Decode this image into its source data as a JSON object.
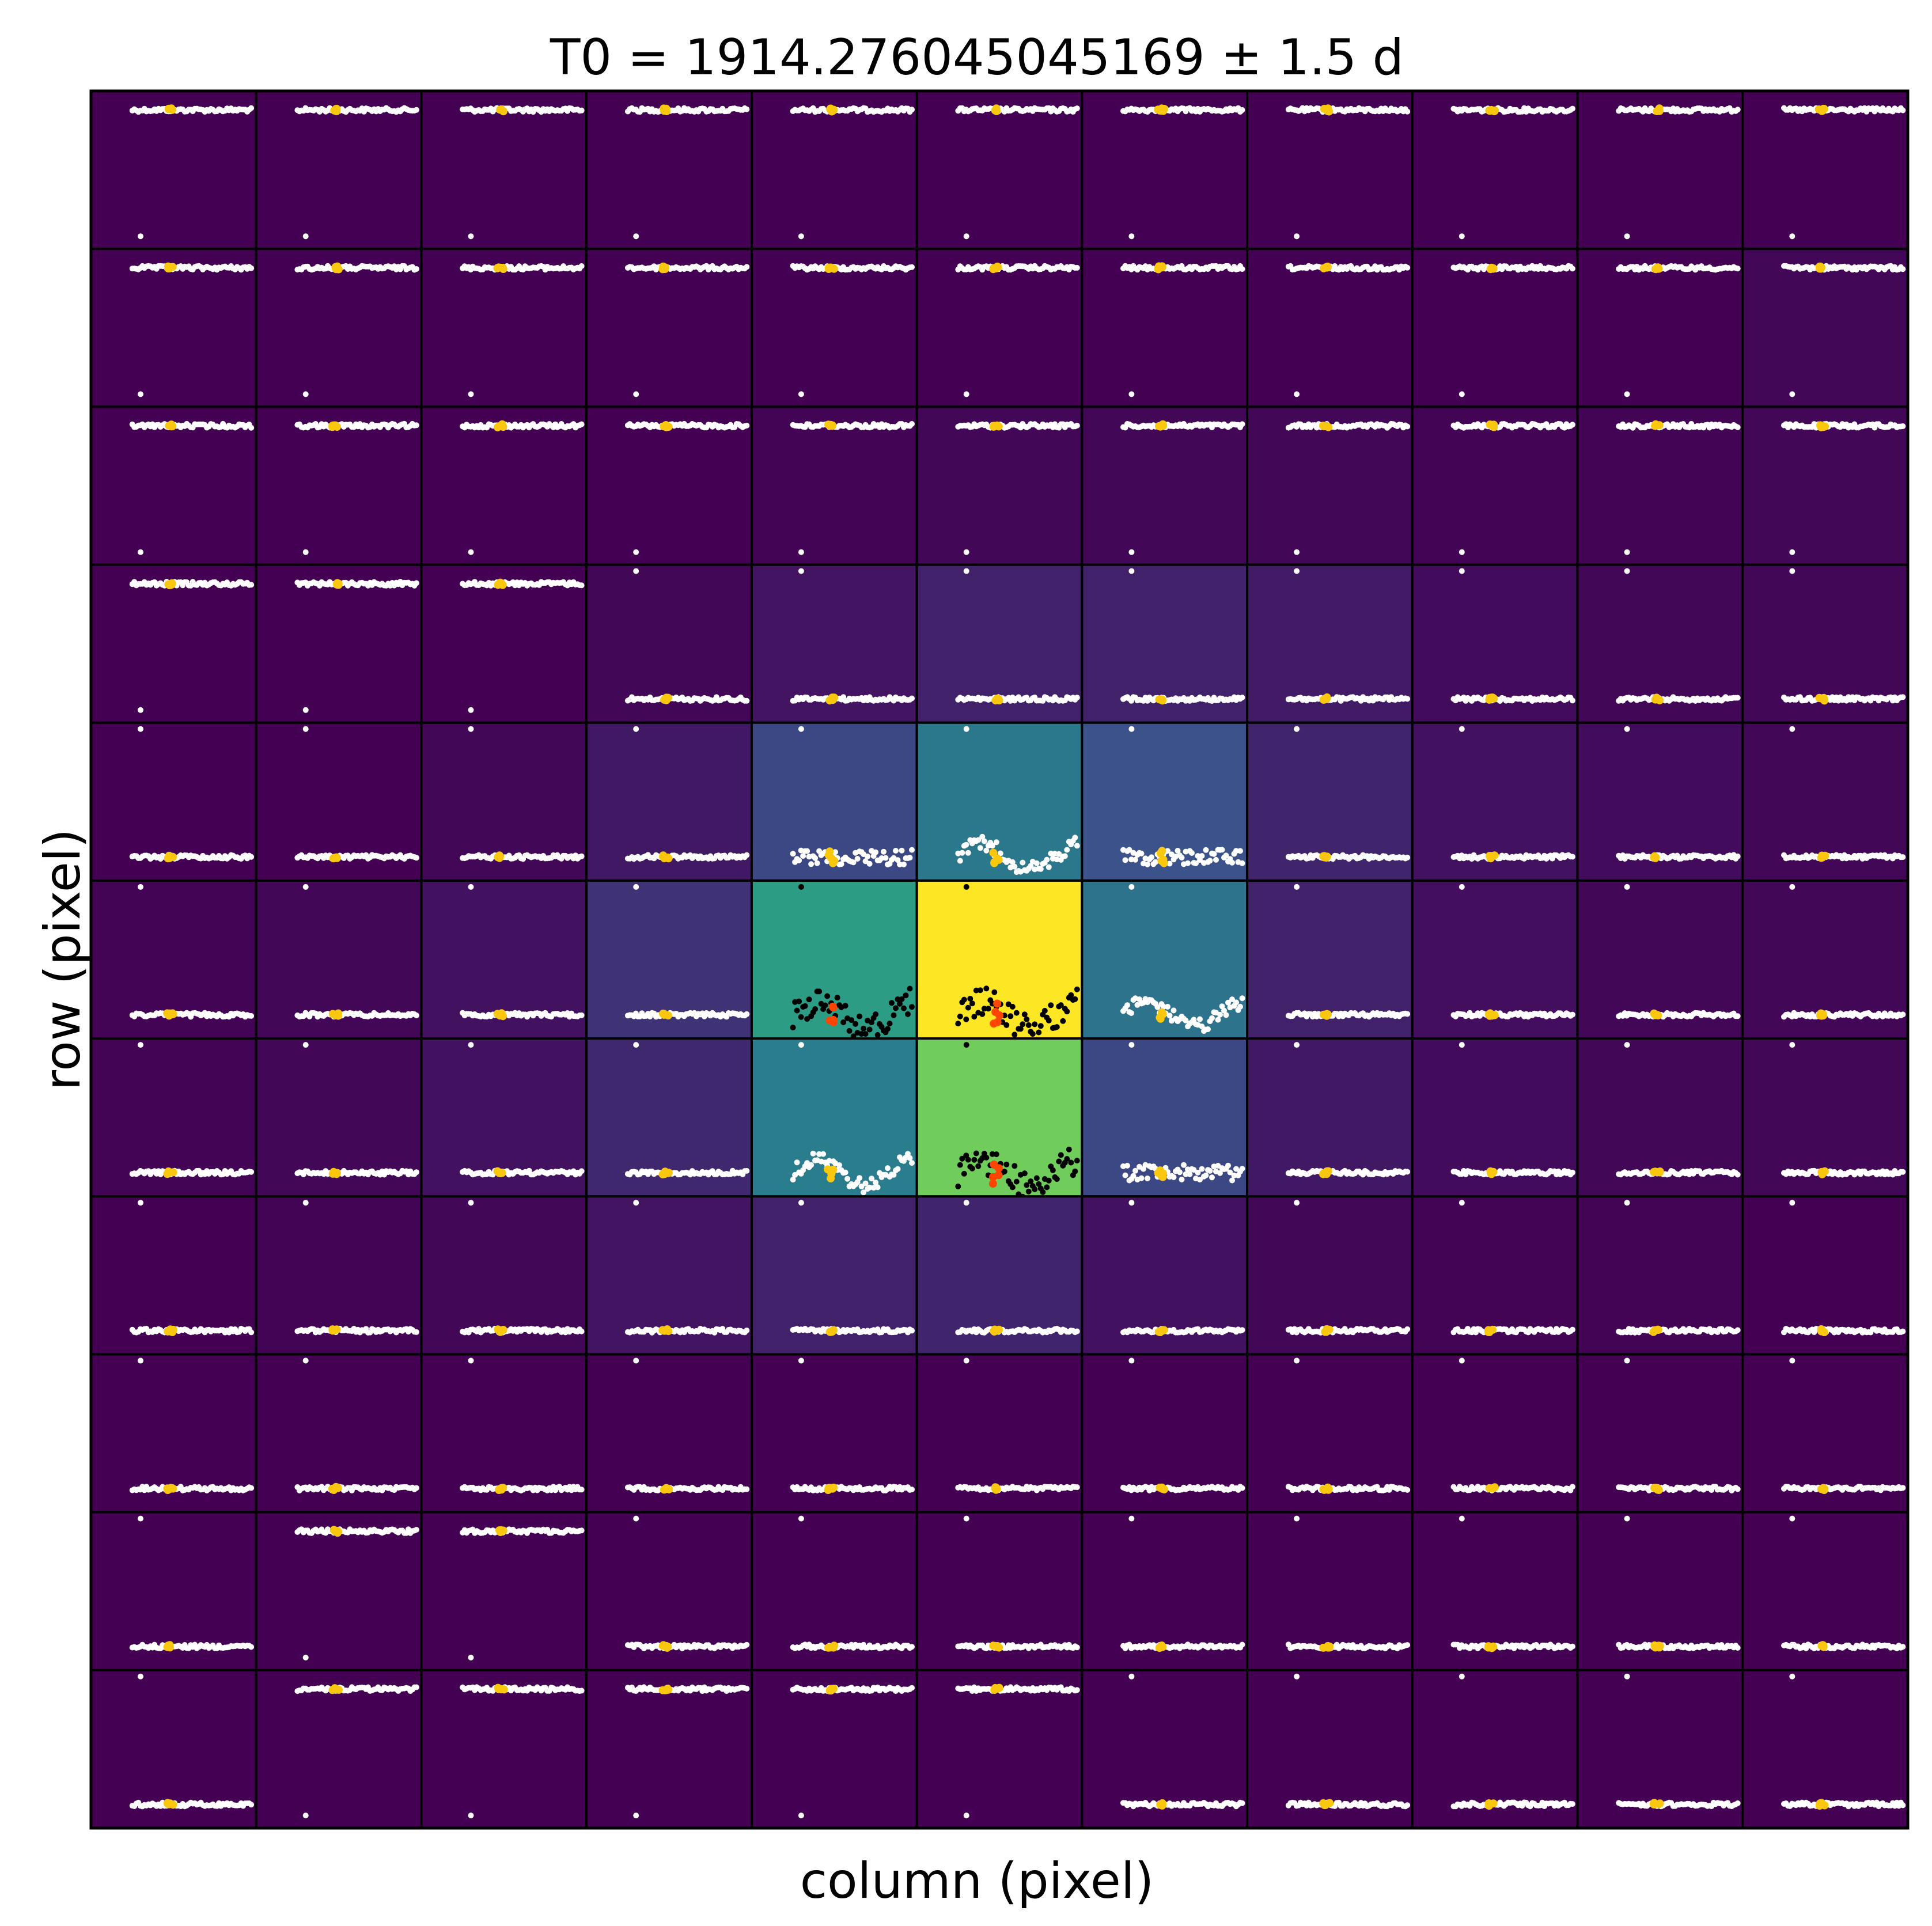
{
  "chart_data": {
    "type": "scatter",
    "title": "T0 = 1914.276045045169 ± 1.5 d",
    "xlabel": "column (pixel)",
    "ylabel": "row (pixel)",
    "grid_rows": 11,
    "grid_cols": 11,
    "colormap": "viridis",
    "pixel_brightness": [
      [
        0.0,
        0.0,
        0.0,
        0.0,
        0.0,
        0.0,
        0.0,
        0.0,
        0.0,
        0.0,
        0.0
      ],
      [
        0.0,
        0.0,
        0.0,
        0.0,
        0.0,
        0.0,
        0.0,
        0.0,
        0.0,
        0.0,
        0.02
      ],
      [
        0.0,
        0.0,
        0.0,
        0.0,
        0.01,
        0.02,
        0.02,
        0.02,
        0.01,
        0.01,
        0.02
      ],
      [
        0.0,
        0.0,
        0.0,
        0.02,
        0.06,
        0.1,
        0.1,
        0.08,
        0.03,
        0.02,
        0.02
      ],
      [
        0.0,
        0.0,
        0.02,
        0.07,
        0.22,
        0.4,
        0.25,
        0.11,
        0.05,
        0.03,
        0.02
      ],
      [
        0.01,
        0.02,
        0.05,
        0.15,
        0.55,
        1.0,
        0.38,
        0.1,
        0.04,
        0.02,
        0.02
      ],
      [
        0.01,
        0.02,
        0.05,
        0.12,
        0.42,
        0.78,
        0.22,
        0.07,
        0.03,
        0.02,
        0.02
      ],
      [
        0.0,
        0.01,
        0.02,
        0.06,
        0.1,
        0.11,
        0.05,
        0.02,
        0.01,
        0.01,
        0.0
      ],
      [
        0.0,
        0.0,
        0.0,
        0.0,
        0.0,
        0.0,
        0.0,
        0.0,
        0.0,
        0.0,
        0.0
      ],
      [
        0.0,
        0.0,
        0.0,
        0.0,
        0.0,
        0.0,
        0.0,
        0.0,
        0.0,
        0.0,
        0.0
      ],
      [
        0.0,
        0.0,
        0.0,
        0.0,
        0.0,
        0.0,
        0.0,
        0.0,
        0.0,
        0.0,
        0.0
      ]
    ],
    "highlighted_pixels": [
      [
        5,
        4
      ],
      [
        5,
        5
      ],
      [
        6,
        5
      ]
    ],
    "series_colors": {
      "light_curve": "#ffffff",
      "light_curve_highlighted": "#000000",
      "transit": "#f9c80e",
      "transit_highlighted": "#ff4500"
    },
    "grid_on": false,
    "legend": "none"
  }
}
